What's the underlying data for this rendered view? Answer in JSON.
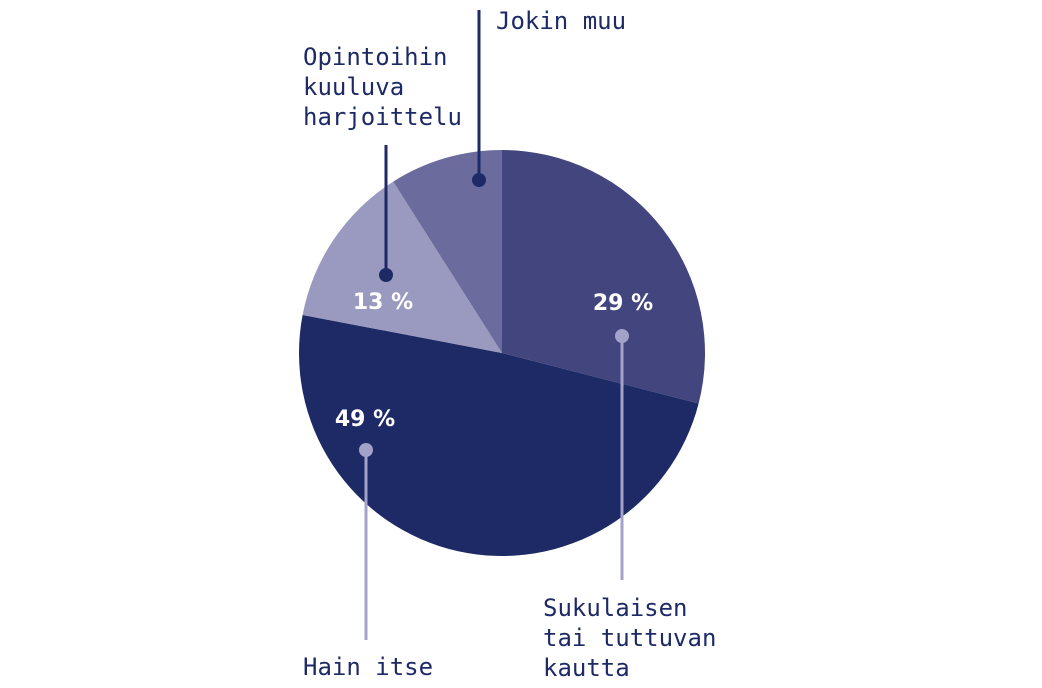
{
  "chart_data": {
    "type": "pie",
    "slices": [
      {
        "label": "Sukulaisen tai tuttuvan kautta",
        "value": 29,
        "value_label": "29 %",
        "color": "#42457e"
      },
      {
        "label": "Hain itse",
        "value": 49,
        "value_label": "49 %",
        "color": "#1e2a66"
      },
      {
        "label": "Opintoihin kuuluva harjoittelu",
        "value": 13,
        "value_label": "13 %",
        "color": "#9a99bf"
      },
      {
        "label": "Jokin muu",
        "value": 9,
        "value_label": "",
        "color": "#6b6b9d"
      }
    ],
    "start_angle_deg": 0,
    "direction": "clockwise",
    "leader_color_dark": "#1e2a66",
    "leader_color_light": "#a3a2c8"
  }
}
